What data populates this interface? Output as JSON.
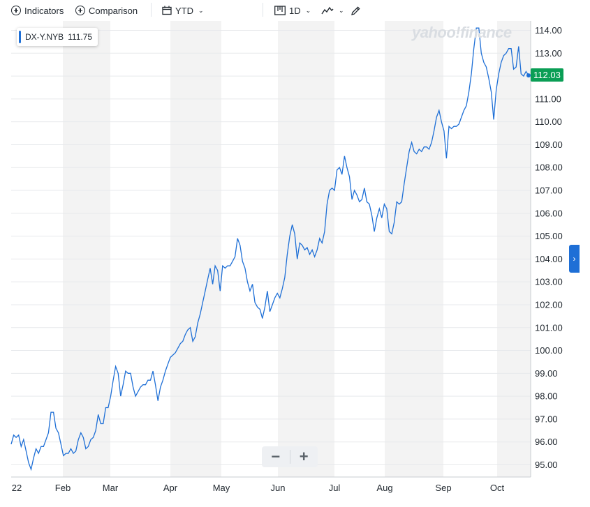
{
  "toolbar": {
    "indicators": "Indicators",
    "comparison": "Comparison",
    "range": "YTD",
    "interval": "1D"
  },
  "icons": {
    "indicators": "circle-plus-icon",
    "comparison": "circle-plus-icon",
    "range": "calendar-icon",
    "interval": "candlestick-icon",
    "chart_type": "line-chart-icon",
    "draw": "pencil-icon",
    "expand": "chevron-right-icon",
    "zoom_out": "minus-icon",
    "zoom_in": "plus-icon"
  },
  "legend": {
    "symbol": "DX-Y.NYB",
    "value": "111.75"
  },
  "watermark": "yahoo!finance",
  "price_tag": "112.03",
  "zoom": {
    "minus": "−",
    "plus": "+"
  },
  "colors": {
    "line": "#1e6fd6",
    "price_tag": "#0a9e55",
    "band": "#f3f3f3",
    "grid": "#e7e9ec"
  },
  "chart_data": {
    "type": "line",
    "title": "",
    "xlabel": "",
    "ylabel": "",
    "ylim": [
      94.6,
      114.4
    ],
    "yticks": [
      "114.00",
      "113.00",
      "112.00",
      "111.00",
      "110.00",
      "109.00",
      "108.00",
      "107.00",
      "106.00",
      "105.00",
      "104.00",
      "103.00",
      "102.00",
      "101.00",
      "100.00",
      "99.00",
      "98.00",
      "97.00",
      "96.00",
      "95.00"
    ],
    "xticks": [
      "22",
      "Feb",
      "Mar",
      "Apr",
      "May",
      "Jun",
      "Jul",
      "Aug",
      "Sep",
      "Oct"
    ],
    "grid": true,
    "series": [
      {
        "name": "DX-Y.NYB",
        "values": [
          95.9,
          96.3,
          96.2,
          96.3,
          95.8,
          96.1,
          95.6,
          95.1,
          94.8,
          95.3,
          95.7,
          95.5,
          95.8,
          95.8,
          96.1,
          96.4,
          97.3,
          97.3,
          96.6,
          96.4,
          95.9,
          95.4,
          95.5,
          95.5,
          95.7,
          95.5,
          95.6,
          96.1,
          96.4,
          96.2,
          95.7,
          95.8,
          96.1,
          96.2,
          96.5,
          97.2,
          96.8,
          96.8,
          97.5,
          97.5,
          98.0,
          98.7,
          99.3,
          99.0,
          98.0,
          98.5,
          99.1,
          99.0,
          99.0,
          98.4,
          98.0,
          98.2,
          98.4,
          98.5,
          98.5,
          98.7,
          98.7,
          99.1,
          98.5,
          97.8,
          98.4,
          98.7,
          99.1,
          99.4,
          99.7,
          99.8,
          99.9,
          100.1,
          100.3,
          100.4,
          100.7,
          100.9,
          101.0,
          100.4,
          100.6,
          101.2,
          101.6,
          102.1,
          102.6,
          103.1,
          103.6,
          102.9,
          103.7,
          103.5,
          102.6,
          103.7,
          103.6,
          103.7,
          103.7,
          103.9,
          104.1,
          104.9,
          104.6,
          103.9,
          103.6,
          103.0,
          102.6,
          102.9,
          102.1,
          101.9,
          101.8,
          101.4,
          101.9,
          102.6,
          101.7,
          102.0,
          102.3,
          102.5,
          102.3,
          102.7,
          103.2,
          104.2,
          105.0,
          105.5,
          105.1,
          104.0,
          104.7,
          104.6,
          104.4,
          104.5,
          104.2,
          104.4,
          104.1,
          104.4,
          104.9,
          104.7,
          105.2,
          106.4,
          107.0,
          107.1,
          107.0,
          107.9,
          108.0,
          107.7,
          108.5,
          108.0,
          107.6,
          106.6,
          107.0,
          106.8,
          106.5,
          106.6,
          107.1,
          106.5,
          106.4,
          105.9,
          105.2,
          105.8,
          106.2,
          105.8,
          106.4,
          106.2,
          105.2,
          105.1,
          105.6,
          106.5,
          106.4,
          106.5,
          107.3,
          108.0,
          108.7,
          109.1,
          108.7,
          108.6,
          108.8,
          108.7,
          108.9,
          108.9,
          108.8,
          109.1,
          109.6,
          110.2,
          110.5,
          110.0,
          109.6,
          108.4,
          109.8,
          109.7,
          109.8,
          109.8,
          109.9,
          110.2,
          110.5,
          110.7,
          111.3,
          112.1,
          113.2,
          114.1,
          114.1,
          113.0,
          112.6,
          112.4,
          111.9,
          111.3,
          110.1,
          111.4,
          112.1,
          112.6,
          112.9,
          113.0,
          113.2,
          113.2,
          112.3,
          112.4,
          113.3,
          112.1,
          112.0,
          112.2,
          112.03
        ]
      }
    ]
  }
}
